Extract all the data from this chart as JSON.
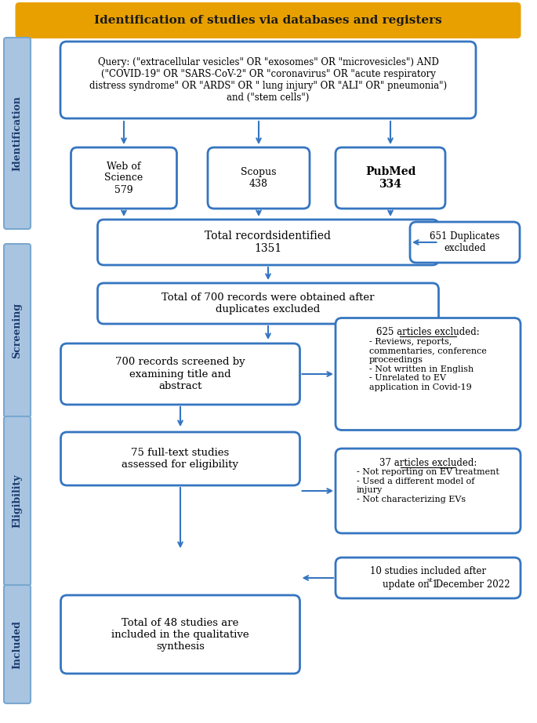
{
  "title": "Identification of studies via databases and registers",
  "title_bg": "#E8A000",
  "title_text_color": "#1a1a1a",
  "box_border_color": "#3575C0",
  "box_fill_color": "#FFFFFF",
  "sidebar_fill_color": "#A8C4E0",
  "sidebar_text_color": "#1a3a6e",
  "arrow_color": "#3575C0",
  "query_text": "Query: (\"extracellular vesicles\" OR \"exosomes\" OR \"microvesicles\") AND\n(\"COVID-19\" OR \"SARS-CoV-2\" OR \"coronavirus\" OR \"acute respiratory\ndistress syndrome\" OR \"ARDS\" OR \" lung injury\" OR \"ALI\" OR\" pneumonia\")\nand (\"stem cells\")",
  "wos_text": "Web of\nScience\n579",
  "scopus_text": "Scopus\n438",
  "pubmed_text": "PubMed\n334",
  "total_records_text": "Total recordsidentified\n1351",
  "duplicates_text": "651 Duplicates\nexcluded",
  "obtained_text": "Total of 700 records were obtained after\nduplicates excluded",
  "screened_text": "700 records screened by\nexamining title and\nabstract",
  "excluded625_title": "625 articles excluded:",
  "excluded625_body": "- Reviews, reports,\ncommentaries, conference\nproceedings\n- Not written in English\n- Unrelated to EV\napplication in Covid-19",
  "fulltext_text": "75 full-text studies\nassessed for eligibility",
  "excluded37_title": "37 articles excluded:",
  "excluded37_body": "- Not reporting on EV treatment\n- Used a different model of\ninjury\n- Not characterizing EVs",
  "included_text": "Total of 48 studies are\nincluded in the qualitative\nsynthesis",
  "update_line1": "10 studies included after",
  "update_line2": "update on 1",
  "update_sup": "st",
  "update_line2b": " December 2022",
  "sidebar_labels": [
    "Identification",
    "Screening",
    "Eligibility",
    "Included"
  ],
  "bg_color": "#FFFFFF"
}
